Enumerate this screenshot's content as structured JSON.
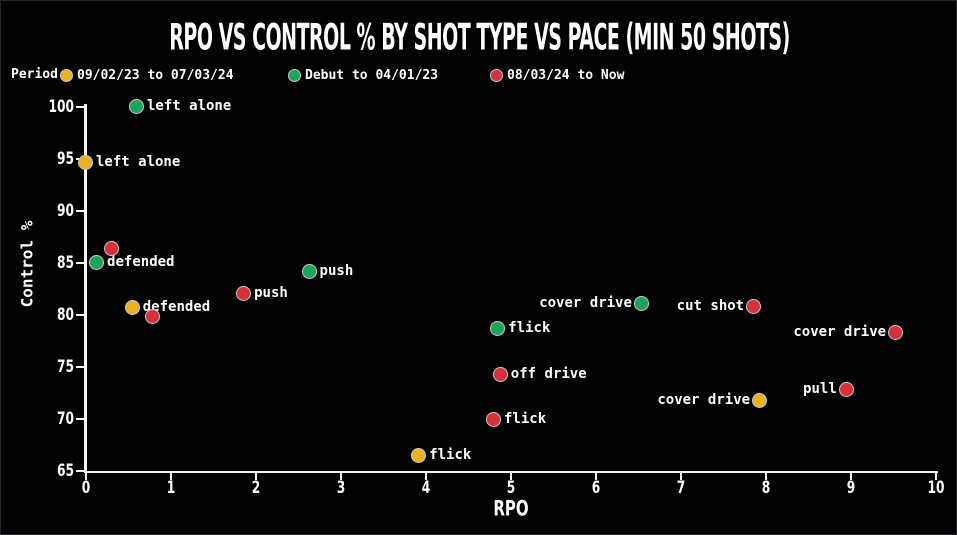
{
  "title": "RPO VS CONTROL % BY SHOT TYPE VS PACE (MIN 50 SHOTS)",
  "legend": {
    "label": "Period",
    "items": [
      {
        "label": "09/02/23 to 07/03/24",
        "color": "#e9b21e"
      },
      {
        "label": "Debut to 04/01/23",
        "color": "#1aa45c"
      },
      {
        "label": "08/03/24 to Now",
        "color": "#d7303c"
      }
    ]
  },
  "colors": {
    "background": "#020202",
    "axis": "#f5f5f5",
    "text": "#ffffff",
    "dot_border": "#c9c9c9",
    "yellow": "#e9b21e",
    "green": "#1aa45c",
    "red": "#d7303c"
  },
  "chart_data": {
    "type": "scatter",
    "title": "RPO VS CONTROL % BY SHOT TYPE VS PACE (MIN 50 SHOTS)",
    "xlabel": "RPO",
    "ylabel": "Control %",
    "xlim": [
      0,
      10
    ],
    "ylim": [
      65,
      100
    ],
    "xticks": [
      0,
      1,
      2,
      3,
      4,
      5,
      6,
      7,
      8,
      9,
      10
    ],
    "yticks": [
      65,
      70,
      75,
      80,
      85,
      90,
      95,
      100
    ],
    "grid": false,
    "legend_position": "top-left",
    "series": [
      {
        "name": "09/02/23 to 07/03/24",
        "color": "#e9b21e",
        "points": [
          {
            "shot": "left alone",
            "x": 0.0,
            "y": 94.6,
            "side": "right"
          },
          {
            "shot": "defended",
            "x": 0.55,
            "y": 80.7,
            "side": "right"
          },
          {
            "shot": "cover drive",
            "x": 7.93,
            "y": 71.7,
            "side": "left"
          },
          {
            "shot": "flick",
            "x": 3.92,
            "y": 66.4,
            "side": "right"
          }
        ]
      },
      {
        "name": "Debut to 04/01/23",
        "color": "#1aa45c",
        "points": [
          {
            "shot": "left alone",
            "x": 0.6,
            "y": 100.0,
            "side": "right"
          },
          {
            "shot": "defended",
            "x": 0.13,
            "y": 85.0,
            "side": "right"
          },
          {
            "shot": "push",
            "x": 2.63,
            "y": 84.1,
            "side": "right"
          },
          {
            "shot": "cover drive",
            "x": 6.54,
            "y": 81.1,
            "side": "left"
          },
          {
            "shot": "flick",
            "x": 4.85,
            "y": 78.7,
            "side": "right"
          }
        ]
      },
      {
        "name": "08/03/24 to Now",
        "color": "#d7303c",
        "points": [
          {
            "shot": "",
            "x": 0.3,
            "y": 86.3,
            "side": "right"
          },
          {
            "shot": "push",
            "x": 1.86,
            "y": 82.0,
            "side": "right"
          },
          {
            "shot": "",
            "x": 0.79,
            "y": 79.8,
            "side": "right"
          },
          {
            "shot": "cut shot",
            "x": 7.86,
            "y": 80.8,
            "side": "left"
          },
          {
            "shot": "cover drive",
            "x": 9.53,
            "y": 78.3,
            "side": "left"
          },
          {
            "shot": "off drive",
            "x": 4.88,
            "y": 74.2,
            "side": "right"
          },
          {
            "shot": "pull",
            "x": 8.95,
            "y": 72.8,
            "side": "left"
          },
          {
            "shot": "flick",
            "x": 4.8,
            "y": 69.9,
            "side": "right"
          }
        ]
      }
    ]
  }
}
